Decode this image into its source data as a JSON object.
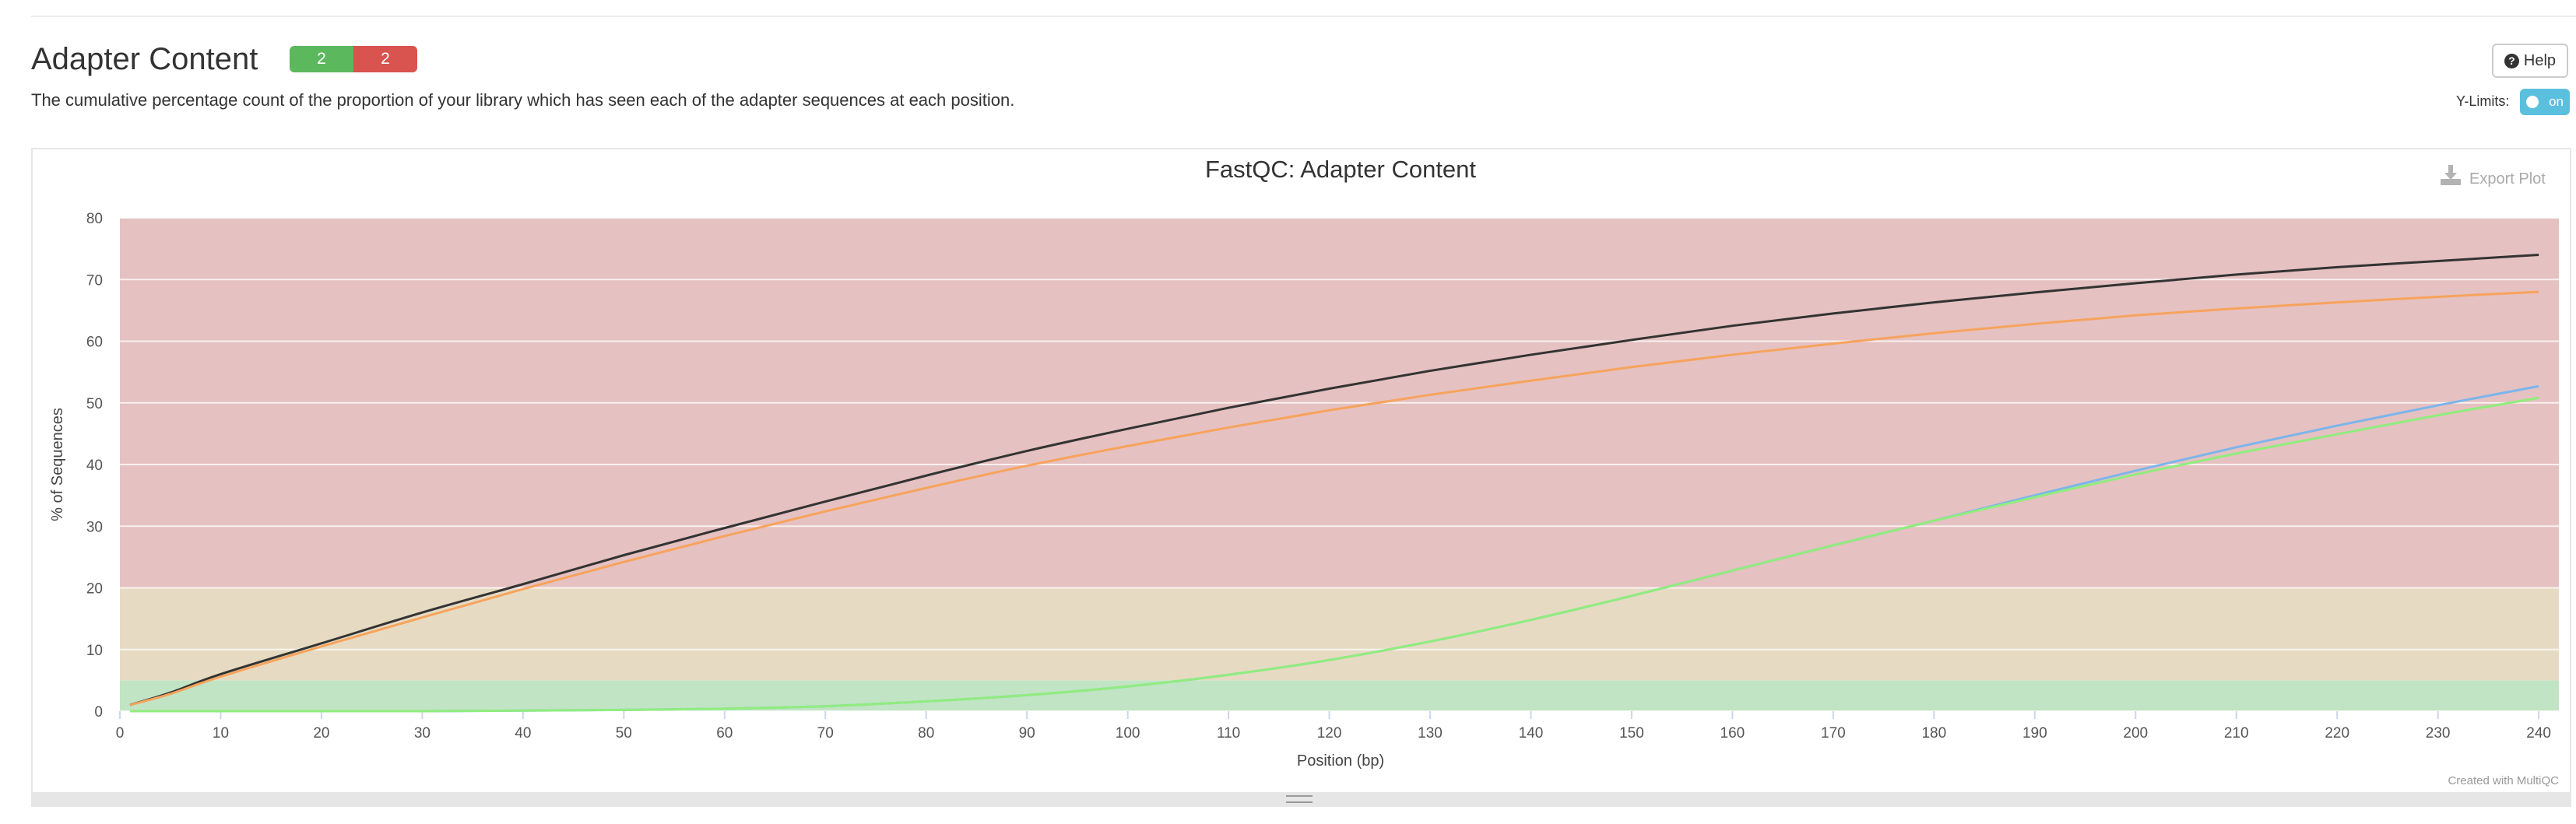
{
  "header": {
    "title": "Adapter Content",
    "badges": {
      "pass": "2",
      "fail": "2"
    },
    "description": "The cumulative percentage count of the proportion of your library which has seen each of the adapter sequences at each position.",
    "help_label": "Help",
    "ylimits_label": "Y-Limits:",
    "ylimits_toggle": "on"
  },
  "plot": {
    "export_label": "Export Plot",
    "credit": "Created with MultiQC"
  },
  "colors": {
    "band_fail": "#e5c1c1",
    "band_warn": "#e6dbc2",
    "band_pass": "#c1e4c4"
  },
  "chart_data": {
    "type": "line",
    "title": "FastQC: Adapter Content",
    "xlabel": "Position (bp)",
    "ylabel": "% of Sequences",
    "xlim": [
      0,
      242
    ],
    "ylim": [
      0,
      80
    ],
    "xticks": [
      0,
      10,
      20,
      30,
      40,
      50,
      60,
      70,
      80,
      90,
      100,
      110,
      120,
      130,
      140,
      150,
      160,
      170,
      180,
      190,
      200,
      210,
      220,
      230,
      240
    ],
    "yticks": [
      0,
      10,
      20,
      30,
      40,
      50,
      60,
      70,
      80
    ],
    "grid": true,
    "bands": [
      {
        "from": 0,
        "to": 5,
        "color": "#c1e4c4"
      },
      {
        "from": 5,
        "to": 20,
        "color": "#e6dbc2"
      },
      {
        "from": 20,
        "to": 80,
        "color": "#e5c1c1"
      }
    ],
    "series": [
      {
        "color": "#333333",
        "x": [
          1,
          5,
          10,
          20,
          30,
          40,
          50,
          60,
          70,
          80,
          90,
          100,
          110,
          120,
          130,
          140,
          150,
          160,
          170,
          180,
          190,
          200,
          210,
          220,
          230,
          240
        ],
        "y": [
          1,
          3,
          6,
          11,
          16,
          20.6,
          25.3,
          29.7,
          34,
          38.2,
          42.2,
          45.8,
          49.2,
          52.3,
          55.2,
          57.8,
          60.2,
          62.5,
          64.5,
          66.3,
          67.9,
          69.4,
          70.8,
          72,
          73,
          74
        ]
      },
      {
        "color": "#f7a35c",
        "x": [
          1,
          5,
          10,
          20,
          30,
          40,
          50,
          60,
          70,
          80,
          90,
          100,
          110,
          120,
          130,
          140,
          150,
          160,
          170,
          180,
          190,
          200,
          210,
          220,
          230,
          240
        ],
        "y": [
          1,
          2.8,
          5.6,
          10.5,
          15.2,
          19.8,
          24.2,
          28.4,
          32.4,
          36.2,
          39.8,
          43,
          46,
          48.8,
          51.3,
          53.6,
          55.8,
          57.8,
          59.6,
          61.3,
          62.8,
          64.2,
          65.3,
          66.3,
          67.2,
          68
        ]
      },
      {
        "color": "#7cb5ec",
        "x": [
          1,
          10,
          20,
          30,
          40,
          50,
          60,
          70,
          80,
          90,
          100,
          110,
          120,
          130,
          140,
          150,
          160,
          170,
          180,
          190,
          200,
          210,
          220,
          230,
          240
        ],
        "y": [
          0,
          0,
          0,
          0,
          0.1,
          0.2,
          0.4,
          0.8,
          1.6,
          2.6,
          4,
          5.9,
          8.3,
          11.3,
          14.8,
          18.7,
          22.8,
          26.9,
          30.9,
          35,
          39,
          42.8,
          46.3,
          49.6,
          52.7
        ]
      },
      {
        "color": "#90ed7d",
        "x": [
          1,
          10,
          20,
          30,
          40,
          50,
          60,
          70,
          80,
          90,
          100,
          110,
          120,
          130,
          140,
          150,
          160,
          170,
          180,
          190,
          200,
          210,
          220,
          230,
          240
        ],
        "y": [
          0,
          0,
          0,
          0,
          0.1,
          0.2,
          0.4,
          0.8,
          1.6,
          2.6,
          4,
          5.9,
          8.3,
          11.3,
          14.8,
          18.7,
          22.8,
          26.9,
          30.9,
          34.7,
          38.4,
          41.8,
          44.9,
          48,
          50.8
        ]
      }
    ]
  }
}
